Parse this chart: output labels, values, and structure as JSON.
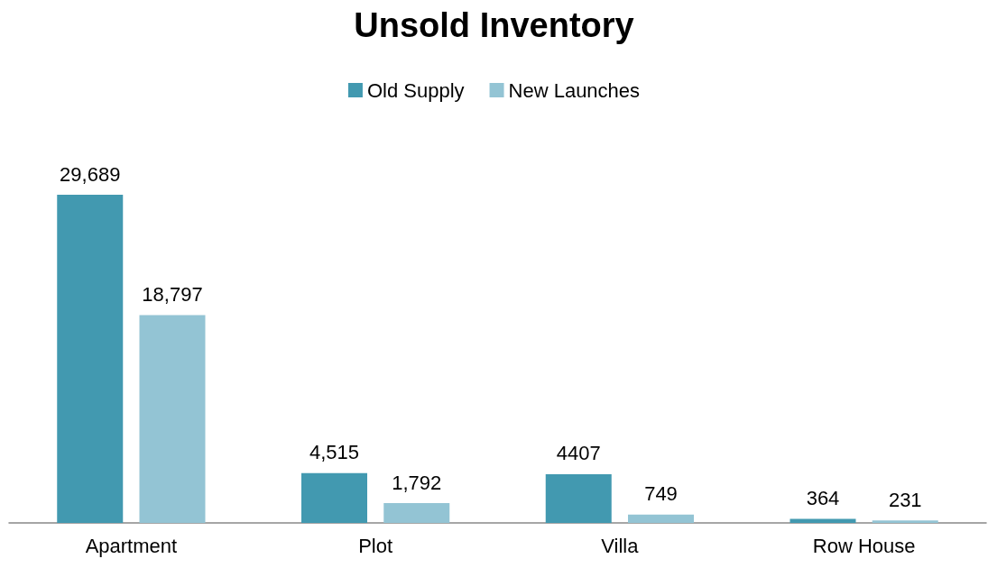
{
  "chart_data": {
    "type": "bar",
    "title": "Unsold Inventory",
    "categories": [
      "Apartment",
      "Plot",
      "Villa",
      "Row House"
    ],
    "series": [
      {
        "name": "Old Supply",
        "color": "#4299b0",
        "values": [
          29689,
          4515,
          4407,
          364
        ],
        "value_labels": [
          "29,689",
          "4,515",
          "4407",
          "364"
        ]
      },
      {
        "name": "New Launches",
        "color": "#93c4d4",
        "values": [
          18797,
          1792,
          749,
          231
        ],
        "value_labels": [
          "18,797",
          "1,792",
          "749",
          "231"
        ]
      }
    ],
    "legend": "top"
  }
}
